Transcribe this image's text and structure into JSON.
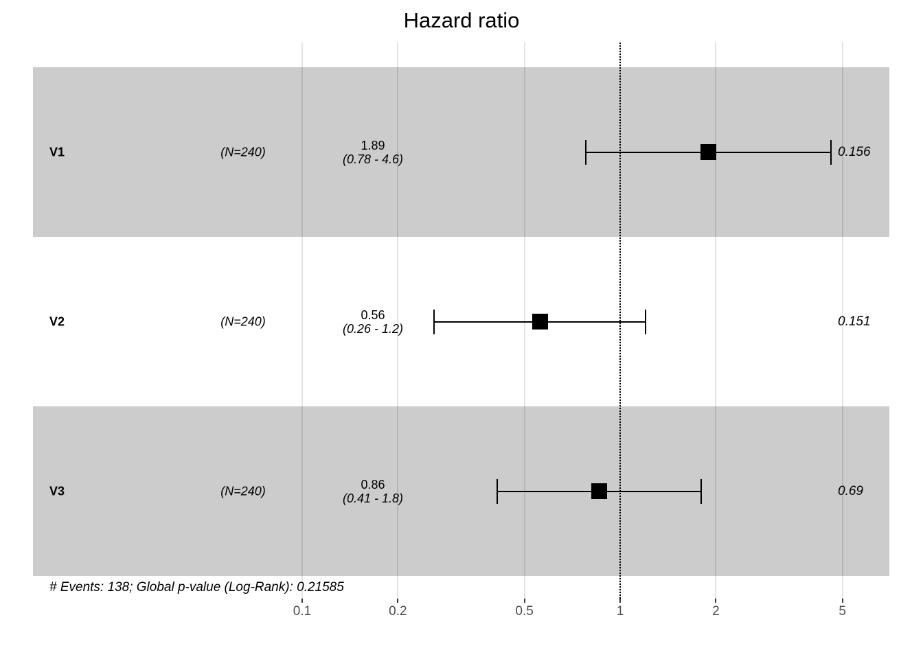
{
  "title": "Hazard ratio",
  "footnote": "# Events: 138; Global p-value (Log-Rank): 0.21585",
  "chart_data": {
    "type": "forest",
    "title": "Hazard ratio",
    "x_scale": "log10",
    "xlim": [
      0.065,
      6.8
    ],
    "reference_line": 1,
    "grid": true,
    "axis_ticks": [
      0.1,
      0.2,
      0.5,
      1,
      2,
      5
    ],
    "axis_tick_labels": [
      "0.1",
      "0.2",
      "0.5",
      "1",
      "2",
      "5"
    ],
    "rows": [
      {
        "label": "V1",
        "n_label": "(N=240)",
        "estimate": 1.89,
        "ci_low": 0.78,
        "ci_high": 4.6,
        "estimate_label": "1.89",
        "ci_label": "(0.78 - 4.6)",
        "p_value_label": "0.156",
        "shaded": true
      },
      {
        "label": "V2",
        "n_label": "(N=240)",
        "estimate": 0.56,
        "ci_low": 0.26,
        "ci_high": 1.2,
        "estimate_label": "0.56",
        "ci_label": "(0.26 - 1.2)",
        "p_value_label": "0.151",
        "shaded": false
      },
      {
        "label": "V3",
        "n_label": "(N=240)",
        "estimate": 0.86,
        "ci_low": 0.41,
        "ci_high": 1.8,
        "estimate_label": "0.86",
        "ci_label": "(0.41 - 1.8)",
        "p_value_label": "0.69",
        "shaded": true
      }
    ],
    "footnote": "# Events: 138; Global p-value (Log-Rank): 0.21585",
    "colors": {
      "band": "#cccccc",
      "marker": "#000000",
      "axis_text": "#4d4d4d",
      "text": "#000000"
    }
  }
}
